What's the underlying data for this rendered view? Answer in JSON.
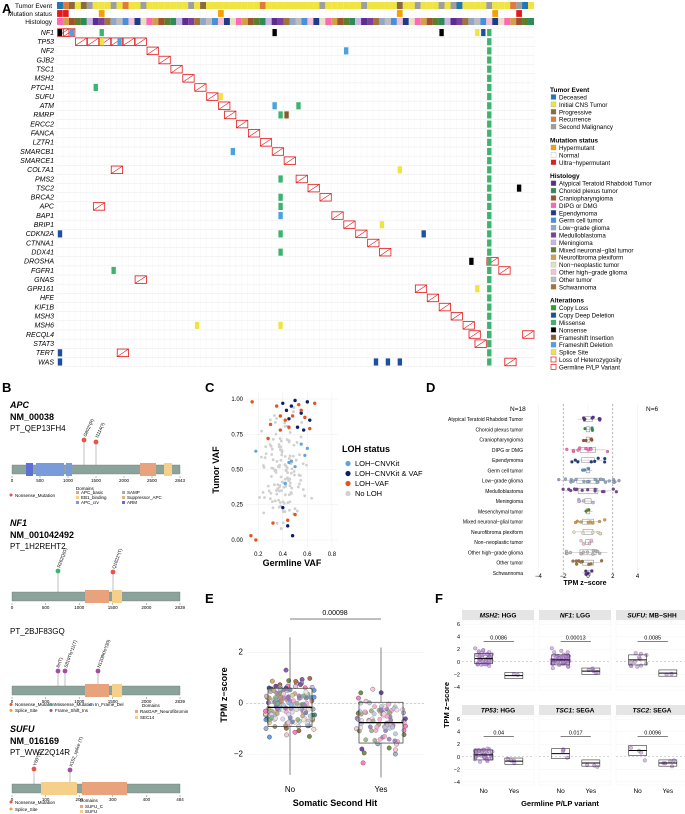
{
  "panel_labels": {
    "a": "A",
    "b": "B",
    "c": "C",
    "d": "D",
    "e": "E",
    "f": "F"
  },
  "panel_a": {
    "track_labels": [
      "Tumor Event",
      "Mutation status",
      "Histology"
    ],
    "genes": [
      "NF1",
      "TP53",
      "NF2",
      "GJB2",
      "TSC1",
      "MSH2",
      "PTCH1",
      "SUFU",
      "ATM",
      "RMRP",
      "ERCC2",
      "FANCA",
      "LZTR1",
      "SMARCB1",
      "SMARCE1",
      "COL7A1",
      "PMS2",
      "TSC2",
      "BRCA2",
      "APC",
      "BAP1",
      "BRIP1",
      "CDKN2A",
      "CTNNA1",
      "DDX41",
      "DROSHA",
      "FGFR1",
      "GNAS",
      "GPR161",
      "HFE",
      "KIF1B",
      "MSH3",
      "MSH6",
      "RECQL4",
      "STAT3",
      "TERT",
      "WAS"
    ],
    "legend": {
      "tumor_event": {
        "title": "Tumor Event",
        "items": [
          {
            "label": "Deceased",
            "color": "#1f77b4"
          },
          {
            "label": "Initial CNS Tumor",
            "color": "#f0e442"
          },
          {
            "label": "Progressive",
            "color": "#8b6a3e"
          },
          {
            "label": "Recurrence",
            "color": "#e07b39"
          },
          {
            "label": "Second Malignancy",
            "color": "#9e9e9e"
          }
        ]
      },
      "mutation_status": {
        "title": "Mutation status",
        "items": [
          {
            "label": "Hypermutant",
            "color": "#f4a100"
          },
          {
            "label": "Normal",
            "color": "#ffffff"
          },
          {
            "label": "Ultra−hypermutant",
            "color": "#e31a1c"
          }
        ]
      },
      "histology": {
        "title": "Histology",
        "items": [
          {
            "label": "Atypical Teratoid Rhabdoid Tumor",
            "color": "#5a2d91"
          },
          {
            "label": "Choroid plexus tumor",
            "color": "#2e8b57"
          },
          {
            "label": "Craniopharyngioma",
            "color": "#a0522d"
          },
          {
            "label": "DIPG or DMG",
            "color": "#ff69b4"
          },
          {
            "label": "Ependymoma",
            "color": "#1e3a8a"
          },
          {
            "label": "Germ cell tumor",
            "color": "#4a90d9"
          },
          {
            "label": "Low−grade glioma",
            "color": "#8fa8c8"
          },
          {
            "label": "Medulloblastoma",
            "color": "#7b3fa0"
          },
          {
            "label": "Meningioma",
            "color": "#c9b6e4"
          },
          {
            "label": "Mixed neuronal−glial tumor",
            "color": "#5b7f2a"
          },
          {
            "label": "Neurofibroma plexiform",
            "color": "#d3a04a"
          },
          {
            "label": "Non−neoplastic tumor",
            "color": "#e8e0c0"
          },
          {
            "label": "Other high−grade glioma",
            "color": "#f4c2d7"
          },
          {
            "label": "Other tumor",
            "color": "#bdbdbd"
          },
          {
            "label": "Schwannoma",
            "color": "#a0743a"
          }
        ]
      },
      "alterations": {
        "title": "Alterations",
        "items": [
          {
            "label": "Copy Loss",
            "color": "#2ca02c"
          },
          {
            "label": "Copy Deep Deletion",
            "color": "#1e4fa0"
          },
          {
            "label": "Missense",
            "color": "#3cb371"
          },
          {
            "label": "Nonsense",
            "color": "#000000"
          },
          {
            "label": "Frameshift Insertion",
            "color": "#8b5a2b"
          },
          {
            "label": "Frameshift Deletion",
            "color": "#4aa3df"
          },
          {
            "label": "Splice Site",
            "color": "#f0e442"
          },
          {
            "label": "Loss of Heterozygosity",
            "color": "none"
          },
          {
            "label": "Germline P/LP Variant",
            "color": "none"
          }
        ]
      }
    }
  },
  "panel_b": {
    "apc": {
      "gene": "APC",
      "transcript": "NM_00038",
      "patient": "PT_QEP13FH4",
      "mutations": [
        "G802*(R)",
        "I1114(?)"
      ],
      "axis_ticks": [
        "0",
        "500",
        "1000",
        "1500",
        "2000",
        "2500",
        "2843"
      ],
      "legend_mut": [
        "Nonsense_Mutation"
      ],
      "domains_title": "Domains",
      "domains": [
        "APC_basic",
        "EB1_binding",
        "APC_crv",
        "SAMP",
        "Suppressor_APC",
        "ARM"
      ]
    },
    "nf1": {
      "gene": "NF1",
      "transcript": "NM_001042492",
      "patient1": "PT_1H2REHT2",
      "patient2": "PT_2BJF83GQ",
      "mutations1": [
        "R262Q(G)",
        "Q1822*(T)"
      ],
      "mutations2": [
        "Ile(T)",
        "S819Tfs*11(T)",
        "N1208Kfs*(30)"
      ],
      "axis_ticks": [
        "0",
        "500",
        "1000",
        "1500",
        "2000",
        "2839"
      ],
      "legend_mut": [
        "Nonsense_Mutation",
        "Splice_Site",
        "Missense_Mutation",
        "Frame_Shift_Ins",
        "In_Frame_Del"
      ],
      "domains_title": "Domains",
      "domains": [
        "RasGAP_Neurofibromin",
        "SEC14"
      ]
    },
    "sufu": {
      "gene": "SUFU",
      "transcript": "NM_016169",
      "patient": "PT_WWZ2Q14R",
      "mutations": [
        "Y60*(G)",
        "X152_splice (T)"
      ],
      "axis_ticks": [
        "0",
        "100",
        "200",
        "300",
        "400",
        "484"
      ],
      "legend_mut": [
        "Nonsense_Mutation",
        "Splice_Site"
      ],
      "domains_title": "Domains",
      "domains": [
        "SUFU_C",
        "SUFU"
      ]
    }
  },
  "panel_c": {
    "xlabel": "Germline VAF",
    "ylabel": "Tumor VAF",
    "x_ticks": [
      "0.2",
      "0.4",
      "0.6",
      "0.8"
    ],
    "y_ticks": [
      "0.00",
      "0.25",
      "0.50",
      "0.75",
      "1.00"
    ],
    "legend_title": "LOH status",
    "legend": [
      {
        "label": "LOH−CNVKit",
        "color": "#5aa5e0"
      },
      {
        "label": "LOH−CNVKit & VAF",
        "color": "#0b1e6e"
      },
      {
        "label": "LOH−VAF",
        "color": "#e8531a"
      },
      {
        "label": "No LOH",
        "color": "#d0d0d0"
      }
    ]
  },
  "panel_d": {
    "xlabel": "TPM z−score",
    "x_ticks": [
      "−4",
      "−2",
      "0",
      "2",
      "4"
    ],
    "n_left": "N=18",
    "n_right": "N=6",
    "categories": [
      "Atypical Teratoid Rhabdoid Tumor",
      "Choroid plexus tumor",
      "Craniopharyngioma",
      "DIPG or DMG",
      "Ependymoma",
      "Germ cell tumor",
      "Low−grade glioma",
      "Medulloblastoma",
      "Meningioma",
      "Mesenchymal tumor",
      "Mixed neuronal−glial tumor",
      "Neurofibroma plexiform",
      "Non−neoplastic tumor",
      "Other high−grade glioma",
      "Other tumor",
      "Schwannoma"
    ]
  },
  "panel_e": {
    "xlabel": "Somatic Second Hit",
    "ylabel": "TPM z−score",
    "categories": [
      "No",
      "Yes"
    ],
    "y_ticks": [
      "−2",
      "0",
      "2"
    ],
    "pvalue": "0.00098"
  },
  "panel_f": {
    "xlabel": "Germline P/LP variant",
    "ylabel": "TPM z−score",
    "y_ticks": [
      "−4",
      "−2",
      "0",
      "2",
      "4",
      "6"
    ],
    "facets": [
      {
        "gene": "MSH2",
        "suffix": ": HGG",
        "p": "0.0086"
      },
      {
        "gene": "NF1",
        "suffix": ": LGG",
        "p": "0.00013"
      },
      {
        "gene": "SUFU",
        "suffix": ": MB−SHH",
        "p": "0.0085"
      },
      {
        "gene": "TP53",
        "suffix": ": HGG",
        "p": "0.04"
      },
      {
        "gene": "TSC1",
        "suffix": ": SEGA",
        "p": "0.017"
      },
      {
        "gene": "TSC2",
        "suffix": ": SEGA",
        "p": "0.0096"
      }
    ],
    "categories": [
      "No",
      "Yes"
    ]
  }
}
